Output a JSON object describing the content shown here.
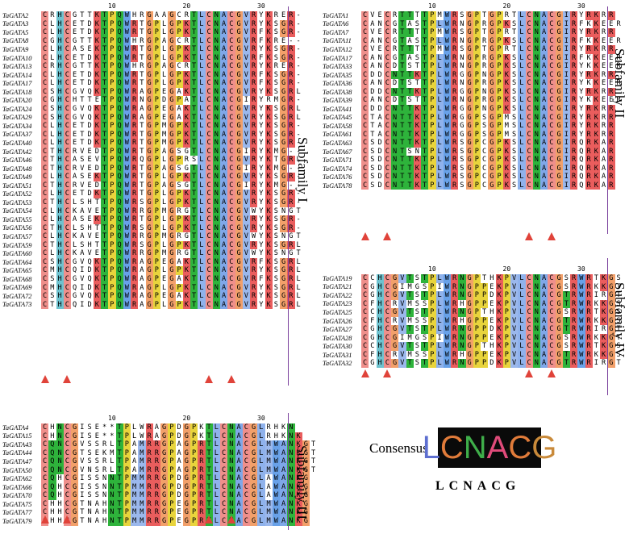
{
  "panels": [
    {
      "id": "subfamily-1",
      "title": "Subfamily I",
      "ticks": [
        "10",
        "20",
        "30"
      ],
      "rows": [
        [
          "TaGATA2",
          "CRHCGTTKTPQWHRGAAGCRTLCNACGVRYKRER-"
        ],
        [
          "TaGATA3",
          "CLHCETDKTPQWRTGPLGPKTLCNACGVRYKSGR-"
        ],
        [
          "TaGATA5",
          "CLHCETDKTPQWRTGPLGPKTLCNACGVRFKSGR-"
        ],
        [
          "TaGATA8",
          "CGHCGTTKTPQWHRGPAGCRTLCNACGVRFKRE--"
        ],
        [
          "TaGATA9",
          "CLHCASEKTPQWRTGPLGPKTLCNACGVRYKSGR-"
        ],
        [
          "TaGATA10",
          "CLHCETDKTPQWRTGPLGPKTLCNACGVRFKSGR-"
        ],
        [
          "TaGATA13",
          "CRHCGTTKTPQWHRGPAGCRTLCNACGVRYKRER-"
        ],
        [
          "TaGATA14",
          "CLHCETDKTPQWRTGPLGPKTLCNACGVRFKSGR-"
        ],
        [
          "TaGATA17",
          "CLHCETDKTPQWRTGPLGPKTLCNACGVRFKSGR-"
        ],
        [
          "TaGATA18",
          "CSHCGVQKTPQWRAGPEGAKTLCNACGVRYKSGRL"
        ],
        [
          "TaGATA20",
          "CGHCHTTETPQWRNGPDGPATLCNACGIRYRMGR-"
        ],
        [
          "TaGATA24",
          "CSHCGVQKTPQWRAGPEGAKTLCNACGVRYKSGRL"
        ],
        [
          "TaGATA29",
          "CSHCGVQKTPQWRAGPEGAKTLCNACGVRYKSGRL"
        ],
        [
          "TaGATA34",
          "CLHCETDKTPQWRTGPMGPKTLCNACGVRYKSGR-"
        ],
        [
          "TaGATA37",
          "CLHCETDKTPQWRTGPMGPKTLCNACGVRYKSGR-"
        ],
        [
          "TaGATA40",
          "CLHCETDKTPQWRTGPMGPKTLCNACGVRYKSGR-"
        ],
        [
          "TaGATA42",
          "CTHCRVEDTPQWRTGPAGSGTLCNACGIRYKMG--"
        ],
        [
          "TaGATA46",
          "CTHCASEVTPQWRQGPLGPRSLCNACGVRYKTGRL"
        ],
        [
          "TaGATA48",
          "CTHCRVEDTPQWRTGPAGSGTLCNACGIRYKMG--"
        ],
        [
          "TaGATA49",
          "CLHCASEKTPQWRTGPLGPKTLCNACGVRYKSGR-"
        ],
        [
          "TaGATA51",
          "CTHCRVEDTPQWRTGPAGSGTLCNACGIRYKMG--"
        ],
        [
          "TaGATA52",
          "CLHCETDKTPQWRTGPLGPKTLCNACGVRYKSGR-"
        ],
        [
          "TaGATA53",
          "CTHCLSHTTPQWRSGPLGPKTLCNACGVRYKSGR-"
        ],
        [
          "TaGATA54",
          "CLHCKAVETPQWRRGPMGRGTLCNACGVWYKSNGT"
        ],
        [
          "TaGATA55",
          "CLHCASEKTPQWRTGPLGPKTLCNACGVRYKSGR-"
        ],
        [
          "TaGATA56",
          "CTHCLSHTTPQWRSGPLGPKTLCNACGVRYKSGR-"
        ],
        [
          "TaGATA57",
          "CLHCKAVETPQWRRGPMGRGTLCNACGVWYKSNGT"
        ],
        [
          "TaGATA59",
          "CTHCLSHTTPQWRSGPLGPKTLCNACGVRYKSGRL"
        ],
        [
          "TaGATA60",
          "CLHCKAVETPQWRRGPMGRGTLCNACGVWYKSNGT"
        ],
        [
          "TaGATA64",
          "CSHCGVQKTPQWRAGPEGAKTLCNACGVRFKSGRL"
        ],
        [
          "TaGATA65",
          "CMHCQIDKTPQWRAGPLGPKTLCNACGVRYKSGRL"
        ],
        [
          "TaGATA68",
          "CSHCGVQKTPQWRAGPEGAKTLCNACGVRFKSGRL"
        ],
        [
          "TaGATA69",
          "CMHCQIDKTPQWRAGPLGPKTLCNACGVRYKSGRL"
        ],
        [
          "TaGATA72",
          "CSHCGVQKTPQWRAGPEGAKTLCNACGVRYKSGRL"
        ],
        [
          "TaGATA73",
          "CTHCQIDKTPQWRAGPLGPKTLCNACGVRYKSGRL"
        ]
      ]
    },
    {
      "id": "subfamily-2",
      "title": "Subfamily II",
      "ticks": [
        "10",
        "20",
        "30"
      ],
      "rows": [
        [
          "TaGATA1",
          "CVECRTTTTPMWRSGPTGPRTLCNACGIRYRKRR"
        ],
        [
          "TaGATA6",
          "CANCGTASTPLWRNGPRGPKSLCNACGIRFKKEER"
        ],
        [
          "TaGATA7",
          "CVECRTTTTPMWRSGPTGPRTLCNACGIRYRKRR"
        ],
        [
          "TaGATA11",
          "CANCGTASTPLWRNGPRGPKSLCNACGIRFKKEER"
        ],
        [
          "TaGATA12",
          "CVECRTTTTPMWRSGPTGPRTLCNACGIRYRKRR"
        ],
        [
          "TaGATA17",
          "CANCGTASTPLWRNGPRGPKSLCNACGIRFKKEER"
        ],
        [
          "TaGATA33",
          "CANCDTSTTPLWRNGPRGPKSLCNACGIRYKKEER"
        ],
        [
          "TaGATA35",
          "CDDCNTTKTPLWRGGPNGPKSLCNACGIRYRKRR"
        ],
        [
          "TaGATA36",
          "CANCDTSTTPLWRNGPRGPKSLCNACGIRYKKEER"
        ],
        [
          "TaGATA38",
          "CDDCNTTKTPLWRGGPNGPKSLCNACGIRYRKRR"
        ],
        [
          "TaGATA39",
          "CANCDTSTTPLWRNGPRGPKSLCNACGIRYKKEER"
        ],
        [
          "TaGATA41",
          "CDDCNTTKTPLWRGGPNGPKSLCNACGIRYRKRR"
        ],
        [
          "TaGATA45",
          "CTACNTTKTPLWRGGPSGPMSLCNACGIRYRKRR"
        ],
        [
          "TaGATA58",
          "CTACNTTKTPLWRGGPSGPMSLCNACGIRYRKRR"
        ],
        [
          "TaGATA61",
          "CTACNTTKTPLWRGGPSGPMSLCNACGIRYRKRR"
        ],
        [
          "TaGATA63",
          "CSDCNTTKTPLWRSGPCGPKSLCNACGIRQRKAR"
        ],
        [
          "TaGATA67",
          "CSDCNTSNTPLWRSGPCGPKSLCNACGIRQRKAR"
        ],
        [
          "TaGATA71",
          "CSDCNTTKTPLWRSGPCGPKSLCNACGIRQRKAR"
        ],
        [
          "TaGATA74",
          "CSDCNTTKTPLWRSGPCGPKSLCNACGIRQRKAR"
        ],
        [
          "TaGATA76",
          "CSDCNTTKTPLWRSGPCGPKSLCNACGIRQRKAR"
        ],
        [
          "TaGATA78",
          "CSDCNTTKTPLWRSGPCGPKSLCNACGIRQRKAR"
        ]
      ]
    },
    {
      "id": "subfamily-3",
      "title": "Subfamily III",
      "ticks": [
        "10",
        "20",
        "30"
      ],
      "rows": [
        [
          "TaGATA4",
          "CHNCGISE**TPLWRAGPDGPKTLCNACGLRHKN"
        ],
        [
          "TaGATA15",
          "CHNCGISE**TPLWRAGPDGPKTLCNACGLRHKNK"
        ],
        [
          "TaGATA43",
          "CQNCGVSSRLTPAMRRGPAGPRTLCNACGLMWANKGT"
        ],
        [
          "TaGATA44",
          "CQNCGTSEKMTPAMRRGPAGPRTLCNACGLMWANKGT"
        ],
        [
          "TaGATA47",
          "CQNCGVSSRLTPAMRRGPAGPRTLCNACGLMWANKGT"
        ],
        [
          "TaGATA50",
          "CQNCGVNSRLTPAMRRGPAGPRTLCNACGLMWANKGT"
        ],
        [
          "TaGATA62",
          "CQHCGISSNNTPMMRRGPDGPRTLCNACGLAWANKG"
        ],
        [
          "TaGATA66",
          "CQHCGISSNNTPMMRRGPDGPRTLCNACGLAWANKG"
        ],
        [
          "TaGATA70",
          "CQHCGISSNNTPMMRRGPDGPRTLCNACGLAWANKG"
        ],
        [
          "TaGATA75",
          "CHHCGTNAHNTPMMRRGPEGPRTLCNACGLMWANKG"
        ],
        [
          "TaGATA77",
          "CHHCGTNAHNTPMMRRGPEGPRTLCNACGLMWANKG"
        ],
        [
          "TaGATA79",
          "CHHCGTNAHNTPMMRRGPEGPRTLCNACGLMWANKG"
        ]
      ]
    },
    {
      "id": "subfamily-4",
      "title": "Subfamily IV",
      "ticks": [
        "10",
        "20",
        "30"
      ],
      "rows": [
        [
          "TaGATA19",
          "CCHCGVTSTPLWRNGPTHKPVLCNACGSRWRTKGS"
        ],
        [
          "TaGATA21",
          "CGHCGIMGSPIWRNGPPEKPVLCNACGSRWRKKGT"
        ],
        [
          "TaGATA22",
          "CGHCGVTSTPLWRNGPPDKPVLCNACGTRWRIRGT"
        ],
        [
          "TaGATA23",
          "CFHCRVMSSPLWRHGPPEKPVLCNACGTRWRKKGS"
        ],
        [
          "TaGATA25",
          "CCHCGVTSTPLWRNGPTHKPVLCNACGSRWRTKGS"
        ],
        [
          "TaGATA26",
          "CFHCRVMSSPLWRHGPPEKPVLCNACGTRWRKKGS"
        ],
        [
          "TaGATA27",
          "CGHCGVTSTPLWRNGPPDKPVLCNACGTRWRIRGT"
        ],
        [
          "TaGATA28",
          "CGHCGIMGSPIWRNGPPEKPVLCNACGSRWRKKGT"
        ],
        [
          "TaGATA30",
          "CCHCGVTSTPLWRNGPTHKPVLCNACGSRWRTKGS"
        ],
        [
          "TaGATA31",
          "CFHCRVMSSPLWRHGPPEKPVLCNACGTRWRKKGS"
        ],
        [
          "TaGATA32",
          "CGHCGVTSTPLWRNGPPDKPVLCNACGTRWRIRGT"
        ]
      ]
    }
  ],
  "consensus": {
    "label": "Consensus",
    "logo": "LCNACG",
    "text": "LCNACG"
  },
  "colors": {
    "C": "#ef8f8b",
    "H": "#6ec2cf",
    "Q": "#2eb33b",
    "N": "#2eb33b",
    "G": "#f2a06a",
    "P": "#e8d43c",
    "W": "#68a1e8",
    "R": "#ea5d5d",
    "K": "#ea5d5d",
    "L": "#8fb2ec",
    "A": "#7fa7e8",
    "V": "#9bb8ec",
    "I": "#9bb8ec",
    "M": "#9bb8ec",
    "T": "#2eb33b",
    "arrow": "#e0433a",
    "bracket": "#7a3f9c",
    "logo_L": "#5e6fd0",
    "logo_C": "#e07b3a",
    "logo_N": "#3fae4a",
    "logo_A": "#e04b7a",
    "logo_G": "#c98a3a"
  }
}
